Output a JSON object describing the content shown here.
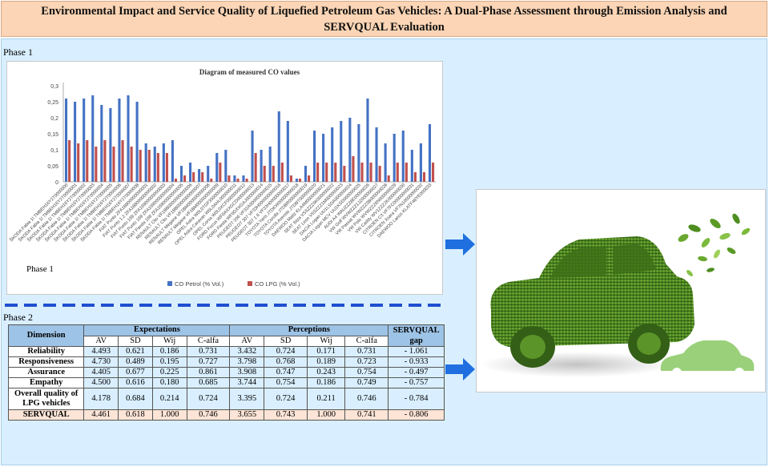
{
  "title": "Environmental Impact and Service Quality of Liquefied Petroleum Gas Vehicles: A Dual-Phase Assessment through Emission Analysis and SERVQUAL Evaluation",
  "phase1_label": "Phase 1",
  "phase1_inner_label": "Phase 1",
  "phase2_label": "Phase 2",
  "chart_data": {
    "type": "bar",
    "title": "Diagram of measured CO values",
    "xlabel": "",
    "ylabel": "",
    "ylim": [
      0,
      0.3
    ],
    "yticks": [
      "0",
      "0,05",
      "0,1",
      "0,15",
      "0,2",
      "0,25",
      "0,3"
    ],
    "grid": false,
    "legend_position": "bottom",
    "categories": [
      "ŠKODA Fabia 1I TMBEH16Y2T0000000",
      "ŠKODA Fabia 1I TMBEH16Y2T0000001",
      "ŠKODA Fabia 1I TMBEH16Y2T0000002",
      "ŠKODA Fabia 1I TMBEH16Y2T0000003",
      "ŠKODA Fabia 1I TMBEH16Y2T0000004",
      "ŠKODA Fabia 1I TMBEH16Y2T0000005",
      "ŠKODA Fabia 1I TMBEH16Y2T0000006",
      "ŠKODA Fabia 1I TMBEH16Y2T0000007",
      "ŠKODA Fabia 1I TMBEH16Y2T0000008",
      "FIAT Punto ZFA18800000000001",
      "FIAT Punto 1.2 ZFA18800000000002",
      "FIAT Punto 169 ZFA16900000000003",
      "FIAT Punto 169 ZFA16900000000004",
      "FIAT Panda 169 ZFA16900000000005",
      "RENAULT Clio VF1BB0000000000006",
      "RENAULT Clio VF1BB0000000000007",
      "RENAULT Megane VF1BM000000000008",
      "RENAULT Megane VF1BM000000000009",
      "OPEL Astra W0L0TGF3500000010",
      "OPEL Astra Caravan W0L0AHL000000011",
      "OPEL Corsa W0L0XCF0000000012",
      "FORD Focus WF0AXXGCD000000013",
      "FORD Fiesta WF0DXXGAJ000000014",
      "PEUGEOT 206 VF32A000000000015",
      "PEUGEOT 307 VF33H000000000016",
      "PEUGEOT 307 1.6 VF33H00000000017",
      "TOYOTA Yaris JTDKW00000000018",
      "TOYOTA Corolla JTDBR0000000019",
      "TOYOTA Avensis JTDBT000000020",
      "DAEWOO Matiz KLA4M0000000021",
      "SEAT Ibiza VSSZZZ6K000000022",
      "SEAT Leon VSSZZZ1M000000023",
      "DACIA Logan UU1LSDA000000024",
      "DACIA Logan MCV UU1KSD000000025",
      "AUDI A4 WAUZZZ8E00000026",
      "VW Golf WVWZZZ1JZ000000027",
      "VW Passat WVWZZZ3B000000028",
      "VW Polo WVWZZZ6N000000029",
      "VW Caddy WV1ZZZ2K000000030",
      "CITROEN C3 VF7FC00000000031",
      "CITROEN Xsara VF7N10000000032",
      "DAEWOO Lanos KLATF48YE000033"
    ],
    "series": [
      {
        "name": "CO Petrol (% Vol.)",
        "color": "#4472c4",
        "values": [
          0.26,
          0.25,
          0.26,
          0.27,
          0.24,
          0.23,
          0.26,
          0.27,
          0.25,
          0.12,
          0.11,
          0.12,
          0.13,
          0.05,
          0.06,
          0.04,
          0.05,
          0.09,
          0.1,
          0.02,
          0.02,
          0.16,
          0.1,
          0.11,
          0.22,
          0.19,
          0.01,
          0.05,
          0.16,
          0.15,
          0.17,
          0.19,
          0.2,
          0.18,
          0.26,
          0.17,
          0.12,
          0.15,
          0.16,
          0.1,
          0.12,
          0.18
        ]
      },
      {
        "name": "CO LPG (% Vol.)",
        "color": "#c0504d",
        "values": [
          0.13,
          0.12,
          0.13,
          0.11,
          0.13,
          0.11,
          0.13,
          0.11,
          0.1,
          0.1,
          0.09,
          0.09,
          0.01,
          0.02,
          0.03,
          0.03,
          0.01,
          0.06,
          0.02,
          0.01,
          0.01,
          0.09,
          0.05,
          0.05,
          0.06,
          0.02,
          0.01,
          0.02,
          0.06,
          0.06,
          0.06,
          0.05,
          0.08,
          0.06,
          0.06,
          0.05,
          0.02,
          0.06,
          0.06,
          0.03,
          0.03,
          0.06
        ]
      }
    ]
  },
  "table": {
    "dimension_header": "Dimension",
    "expectations_header": "Expectations",
    "perceptions_header": "Perceptions",
    "gap_header": "SERVQUAL gap",
    "sub_headers": [
      "AV",
      "SD",
      "Wij",
      "C-alfa"
    ],
    "rows": [
      {
        "dimension": "Reliability",
        "exp": [
          "4.493",
          "0.621",
          "0.186",
          "0.731"
        ],
        "perc": [
          "3.432",
          "0.724",
          "0.171",
          "0.731"
        ],
        "gap": "- 1.061"
      },
      {
        "dimension": "Responsiveness",
        "exp": [
          "4.730",
          "0.489",
          "0.195",
          "0.727"
        ],
        "perc": [
          "3.798",
          "0.768",
          "0.189",
          "0.723"
        ],
        "gap": "- 0.933"
      },
      {
        "dimension": "Assurance",
        "exp": [
          "4.405",
          "0.677",
          "0.225",
          "0.861"
        ],
        "perc": [
          "3.908",
          "0.747",
          "0.243",
          "0.754"
        ],
        "gap": "- 0.497"
      },
      {
        "dimension": "Empathy",
        "exp": [
          "4.500",
          "0.616",
          "0.180",
          "0.685"
        ],
        "perc": [
          "3.744",
          "0.754",
          "0.186",
          "0.749"
        ],
        "gap": "- 0.757"
      },
      {
        "dimension": "Overall quality of LPG vehicles",
        "exp": [
          "4.178",
          "0.684",
          "0.214",
          "0.724"
        ],
        "perc": [
          "3.395",
          "0.724",
          "0.211",
          "0.746"
        ],
        "gap": "- 0.784"
      },
      {
        "dimension": "SERVQUAL",
        "exp": [
          "4.461",
          "0.618",
          "1.000",
          "0.746"
        ],
        "perc": [
          "3.655",
          "0.743",
          "1.000",
          "0.741"
        ],
        "gap": "- 0.806"
      }
    ]
  },
  "icons": [
    "right-arrow-icon",
    "green-car-icon",
    "leaves-icon",
    "small-car-icon"
  ],
  "colors": {
    "title_bg": "#fbd5b5",
    "panel_bg": "#d9efff",
    "table_header": "#9dc3e6",
    "servqual_row": "#fce4d6",
    "arrow": "#1f6fe0"
  }
}
